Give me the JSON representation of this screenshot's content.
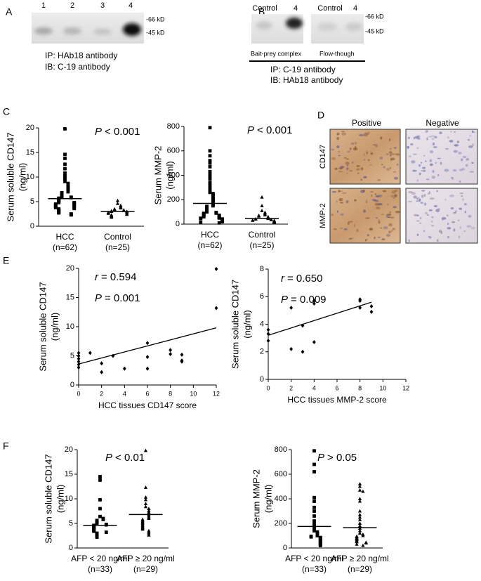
{
  "panel_labels": [
    "A",
    "B",
    "C",
    "D",
    "E",
    "F"
  ],
  "blot_a": {
    "lanes": [
      "1",
      "2",
      "3",
      "4"
    ],
    "markers": [
      "-66 kD",
      "-45 kD"
    ],
    "ip": "IP: HAb18 antibody",
    "ib": "IB: C-19 antibody"
  },
  "blot_b": {
    "lanes": [
      "Control",
      "4",
      "Control",
      "4"
    ],
    "markers": [
      "-66 kD",
      "-45 kD"
    ],
    "fractions": [
      "Bait-prey complex",
      "Flow-though"
    ],
    "ip": "IP: C-19 antibody",
    "ib": "IB: HAb18 antibody"
  },
  "stain_d": {
    "columns": [
      "Positive",
      "Negative"
    ],
    "rows": [
      "CD147",
      "MMP-2"
    ]
  },
  "chart_data": [
    {
      "type": "dot",
      "y_label": [
        "Serum soluble CD147",
        "(ng/ml)"
      ],
      "categories": [
        "HCC",
        "Control"
      ],
      "category_counts": [
        "(n=62)",
        "(n=25)"
      ],
      "values": [
        [
          19.8,
          14.6,
          13.8,
          12.6,
          11.7,
          10.8,
          10.2,
          9.6,
          9.1,
          8.7,
          8.3,
          8.0,
          7.7,
          7.5,
          7.2,
          7.0,
          6.8,
          6.6,
          6.5,
          6.3,
          6.1,
          6.0,
          5.9,
          5.8,
          5.7,
          5.6,
          5.5,
          5.4,
          5.3,
          5.2,
          5.1,
          5.0,
          4.9,
          4.8,
          4.8,
          4.7,
          4.6,
          4.5,
          4.5,
          4.4,
          4.3,
          4.2,
          4.2,
          4.1,
          4.0,
          4.0,
          3.9,
          3.8,
          3.7,
          3.6,
          3.5,
          3.4,
          3.3,
          3.2,
          3.1,
          3.0,
          2.9,
          2.8,
          2.7,
          2.5,
          2.4,
          2.3
        ],
        [
          5.2,
          4.6,
          4.2,
          3.9,
          3.7,
          3.5,
          3.4,
          3.3,
          3.2,
          3.1,
          3.0,
          3.0,
          2.9,
          2.8,
          2.8,
          2.7,
          2.6,
          2.5,
          2.4,
          2.3,
          2.2,
          2.1,
          2.0,
          1.9,
          1.8
        ]
      ],
      "means": [
        5.6,
        3.0
      ],
      "markers": [
        "square",
        "triangle"
      ],
      "color": "#000000",
      "ylim": [
        0,
        20
      ],
      "yticks": [
        0,
        5,
        10,
        15,
        20
      ],
      "annotations": [
        {
          "italic": "P",
          "text": "< 0.001"
        }
      ]
    },
    {
      "type": "dot",
      "y_label": [
        "Serum MMP-2",
        "(ng/ml)"
      ],
      "categories": [
        "HCC",
        "Control"
      ],
      "category_counts": [
        "(n=62)",
        "(n=25)"
      ],
      "values": [
        [
          790,
          600,
          560,
          520,
          500,
          470,
          430,
          410,
          390,
          370,
          340,
          320,
          300,
          280,
          260,
          250,
          240,
          230,
          220,
          210,
          200,
          190,
          180,
          170,
          160,
          150,
          145,
          140,
          130,
          125,
          120,
          110,
          105,
          100,
          95,
          90,
          88,
          85,
          80,
          75,
          72,
          70,
          65,
          60,
          58,
          55,
          52,
          50,
          48,
          45,
          42,
          40,
          38,
          35,
          32,
          30,
          28,
          25,
          22,
          20,
          15,
          10
        ],
        [
          220,
          150,
          110,
          95,
          85,
          75,
          70,
          65,
          60,
          55,
          50,
          45,
          42,
          40,
          38,
          35,
          32,
          30,
          28,
          25,
          22,
          20,
          18,
          15,
          12
        ]
      ],
      "means": [
        170,
        45
      ],
      "markers": [
        "square",
        "triangle"
      ],
      "color": "#000000",
      "ylim": [
        0,
        800
      ],
      "yticks": [
        0,
        200,
        400,
        600,
        800
      ],
      "annotations": [
        {
          "italic": "P",
          "text": "< 0.001"
        }
      ]
    },
    {
      "type": "scatter",
      "x_label": "HCC tissues CD147 score",
      "y_label": [
        "Serum soluble CD147",
        "(ng/ml)"
      ],
      "x": [
        0,
        0,
        0,
        0,
        0,
        0,
        1,
        2,
        2,
        3,
        4,
        6,
        6,
        6,
        8,
        8,
        9,
        9,
        9,
        12,
        12
      ],
      "y": [
        3.0,
        3.5,
        4.0,
        4.5,
        5.0,
        5.5,
        5.5,
        2.2,
        3.7,
        5.0,
        2.8,
        2.8,
        4.8,
        7.2,
        5.3,
        6.0,
        4.0,
        4.2,
        5.2,
        13.2,
        19.9
      ],
      "trend": {
        "x": [
          0,
          12
        ],
        "y": [
          3.6,
          9.8
        ]
      },
      "color": "#000000",
      "xlim": [
        0,
        12
      ],
      "xticks": [
        0,
        2,
        4,
        6,
        8,
        10,
        12
      ],
      "ylim": [
        0,
        20
      ],
      "yticks": [
        0,
        5,
        10,
        15,
        20
      ],
      "annotations": [
        {
          "italic": "r",
          "text": "= 0.594"
        },
        {
          "italic": "P",
          "text": "= 0.001"
        }
      ]
    },
    {
      "type": "scatter",
      "x_label": "HCC tissues MMP-2 score",
      "y_label": [
        "Serum soluble CD147",
        "(ng/ml)"
      ],
      "x": [
        0,
        0,
        0,
        2,
        2,
        3,
        3,
        4,
        4,
        4,
        8,
        8,
        8,
        9,
        9
      ],
      "y": [
        2.8,
        3.3,
        3.6,
        2.2,
        5.2,
        2.0,
        3.9,
        2.7,
        5.5,
        5.7,
        5.2,
        5.7,
        5.8,
        4.9,
        5.3
      ],
      "trend": {
        "x": [
          0,
          9
        ],
        "y": [
          3.2,
          5.6
        ]
      },
      "color": "#000000",
      "xlim": [
        0,
        12
      ],
      "xticks": [
        0,
        2,
        4,
        6,
        8,
        10,
        12
      ],
      "ylim": [
        0,
        8
      ],
      "yticks": [
        0,
        2,
        4,
        6,
        8
      ],
      "annotations": [
        {
          "italic": "r",
          "text": "= 0.650"
        },
        {
          "italic": "P",
          "text": "= 0.009"
        }
      ]
    },
    {
      "type": "dot",
      "y_label": [
        "Serum soluble CD147",
        "(ng/ml)"
      ],
      "categories": [
        "AFP < 20 ng/ml",
        "AFP ≥ 20 ng/ml"
      ],
      "category_counts": [
        "(n=33)",
        "(n=29)"
      ],
      "values": [
        [
          14.5,
          13.8,
          9.8,
          8.0,
          6.4,
          6.0,
          5.8,
          5.6,
          5.4,
          5.2,
          5.0,
          4.9,
          4.8,
          4.7,
          4.6,
          4.5,
          4.4,
          4.3,
          4.2,
          4.1,
          4.0,
          3.9,
          3.8,
          3.7,
          3.6,
          3.5,
          3.4,
          3.2,
          3.0,
          2.8,
          2.6,
          2.4,
          2.2
        ],
        [
          19.8,
          12.3,
          10.3,
          9.8,
          9.0,
          8.4,
          8.0,
          7.6,
          7.3,
          7.0,
          6.8,
          6.5,
          6.2,
          6.0,
          5.8,
          5.6,
          5.4,
          5.2,
          5.0,
          4.8,
          4.6,
          4.4,
          4.2,
          4.0,
          3.8,
          3.5,
          3.2,
          2.9,
          2.6
        ]
      ],
      "means": [
        4.6,
        6.8
      ],
      "markers": [
        "square",
        "triangle"
      ],
      "color": "#000000",
      "ylim": [
        0,
        20
      ],
      "yticks": [
        0,
        5,
        10,
        15,
        20
      ],
      "annotations": [
        {
          "italic": "P",
          "text": "< 0.01"
        }
      ]
    },
    {
      "type": "dot",
      "y_label": [
        "Serum MMP-2",
        "(ng/ml)"
      ],
      "categories": [
        "AFP < 20 ng/ml",
        "AFP ≥ 20 ng/ml"
      ],
      "category_counts": [
        "(n=33)",
        "(n=29)"
      ],
      "values": [
        [
          790,
          680,
          620,
          410,
          380,
          330,
          300,
          260,
          220,
          200,
          180,
          160,
          140,
          130,
          120,
          110,
          100,
          95,
          90,
          85,
          80,
          75,
          70,
          65,
          60,
          55,
          50,
          45,
          40,
          35,
          30,
          25,
          20
        ],
        [
          520,
          500,
          470,
          460,
          400,
          380,
          300,
          270,
          250,
          230,
          200,
          180,
          160,
          140,
          120,
          110,
          100,
          95,
          90,
          80,
          75,
          70,
          60,
          55,
          50,
          45,
          40,
          30,
          20
        ]
      ],
      "means": [
        175,
        165
      ],
      "markers": [
        "square",
        "triangle"
      ],
      "color": "#000000",
      "ylim": [
        0,
        800
      ],
      "yticks": [
        0,
        200,
        400,
        600,
        800
      ],
      "annotations": [
        {
          "italic": "P",
          "text": "> 0.05"
        }
      ]
    }
  ]
}
